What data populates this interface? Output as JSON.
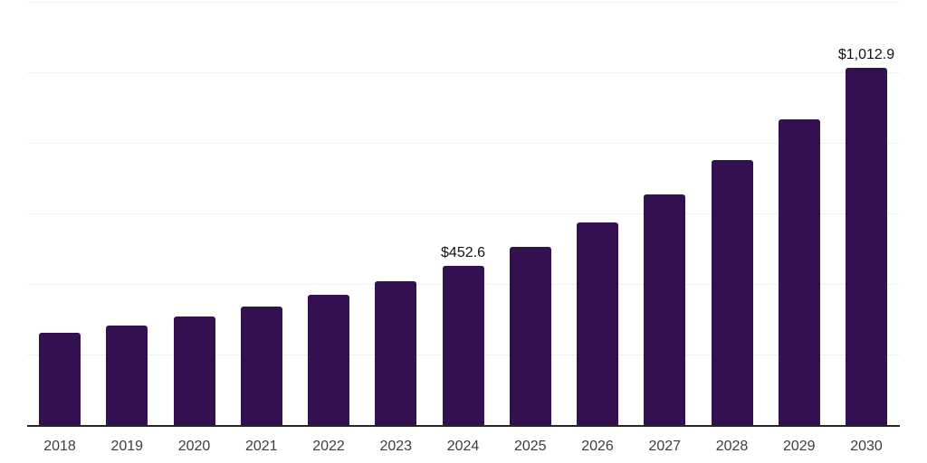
{
  "chart_data": {
    "type": "bar",
    "title": "",
    "xlabel": "",
    "ylabel": "",
    "categories": [
      "2018",
      "2019",
      "2020",
      "2021",
      "2022",
      "2023",
      "2024",
      "2025",
      "2026",
      "2027",
      "2028",
      "2029",
      "2030"
    ],
    "values": [
      261,
      283,
      309,
      337,
      369,
      409,
      452.6,
      505,
      574,
      654,
      751,
      867,
      1012.9
    ],
    "data_labels": [
      "",
      "",
      "",
      "",
      "",
      "",
      "$452.6",
      "",
      "",
      "",
      "",
      "",
      "$1,012.9"
    ],
    "ylim": [
      0,
      1200
    ],
    "gridline_step": 200,
    "grid": "on",
    "legend": "none",
    "y_axis_labels_visible": false,
    "colors": {
      "bar": "#331150",
      "axis_line": "#262626",
      "gridline": "#f0f0f0",
      "tick_text": "#3d3d3d",
      "data_label_text": "#111111",
      "background": "#ffffff"
    }
  }
}
